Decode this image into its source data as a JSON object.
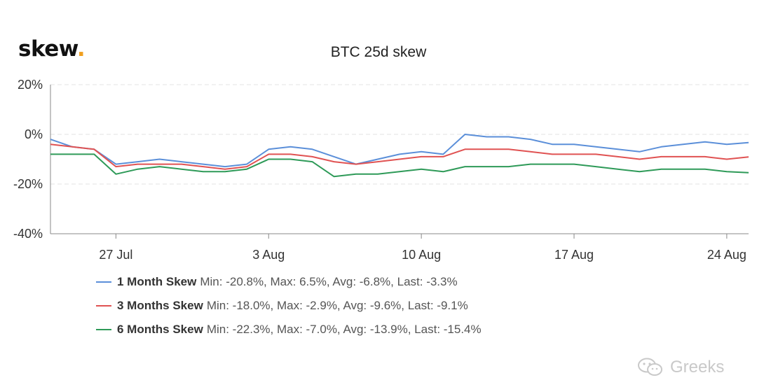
{
  "logo": {
    "text": "skew",
    "dot": "."
  },
  "watermark": {
    "text": "Greeks",
    "icon": "wechat-icon"
  },
  "colors": {
    "one_month": "#5b8fd9",
    "three_months": "#e05252",
    "six_months": "#2e9a58",
    "grid": "#e3e3e3",
    "axis": "#888888"
  },
  "chart_data": {
    "type": "line",
    "title": "BTC 25d skew",
    "xlabel": "",
    "ylabel": "",
    "x_ticks": [
      "27 Jul",
      "3 Aug",
      "10 Aug",
      "17 Aug",
      "24 Aug"
    ],
    "y_ticks": [
      "20%",
      "0%",
      "-20%",
      "-40%"
    ],
    "xlim": [
      "2020-07-24",
      "2020-08-25"
    ],
    "ylim": [
      -40,
      20
    ],
    "grid": true,
    "legend_position": "bottom-left",
    "series": [
      {
        "name": "1 Month Skew",
        "stats": "Min: -20.8%, Max: 6.5%, Avg: -6.8%, Last: -3.3%",
        "x": [
          "2020-07-24",
          "2020-07-25",
          "2020-07-26",
          "2020-07-27",
          "2020-07-28",
          "2020-07-29",
          "2020-07-30",
          "2020-07-31",
          "2020-08-01",
          "2020-08-02",
          "2020-08-03",
          "2020-08-04",
          "2020-08-05",
          "2020-08-06",
          "2020-08-07",
          "2020-08-08",
          "2020-08-09",
          "2020-08-10",
          "2020-08-11",
          "2020-08-12",
          "2020-08-13",
          "2020-08-14",
          "2020-08-15",
          "2020-08-16",
          "2020-08-17",
          "2020-08-18",
          "2020-08-19",
          "2020-08-20",
          "2020-08-21",
          "2020-08-22",
          "2020-08-23",
          "2020-08-24",
          "2020-08-25"
        ],
        "values": [
          -2,
          -5,
          -6,
          -12,
          -11,
          -10,
          -11,
          -12,
          -13,
          -12,
          -6,
          -5,
          -6,
          -9,
          -12,
          -10,
          -8,
          -7,
          -8,
          0,
          -1,
          -1,
          -2,
          -4,
          -4,
          -5,
          -6,
          -7,
          -5,
          -4,
          -3,
          -4,
          -3.3
        ]
      },
      {
        "name": "3 Months Skew",
        "stats": "Min: -18.0%, Max: -2.9%, Avg: -9.6%, Last: -9.1%",
        "x": [
          "2020-07-24",
          "2020-07-25",
          "2020-07-26",
          "2020-07-27",
          "2020-07-28",
          "2020-07-29",
          "2020-07-30",
          "2020-07-31",
          "2020-08-01",
          "2020-08-02",
          "2020-08-03",
          "2020-08-04",
          "2020-08-05",
          "2020-08-06",
          "2020-08-07",
          "2020-08-08",
          "2020-08-09",
          "2020-08-10",
          "2020-08-11",
          "2020-08-12",
          "2020-08-13",
          "2020-08-14",
          "2020-08-15",
          "2020-08-16",
          "2020-08-17",
          "2020-08-18",
          "2020-08-19",
          "2020-08-20",
          "2020-08-21",
          "2020-08-22",
          "2020-08-23",
          "2020-08-24",
          "2020-08-25"
        ],
        "values": [
          -4,
          -5,
          -6,
          -13,
          -12,
          -12,
          -12,
          -13,
          -14,
          -13,
          -8,
          -8,
          -9,
          -11,
          -12,
          -11,
          -10,
          -9,
          -9,
          -6,
          -6,
          -6,
          -7,
          -8,
          -8,
          -8,
          -9,
          -10,
          -9,
          -9,
          -9,
          -10,
          -9.1
        ]
      },
      {
        "name": "6 Months Skew",
        "stats": "Min: -22.3%, Max: -7.0%, Avg: -13.9%, Last: -15.4%",
        "x": [
          "2020-07-24",
          "2020-07-25",
          "2020-07-26",
          "2020-07-27",
          "2020-07-28",
          "2020-07-29",
          "2020-07-30",
          "2020-07-31",
          "2020-08-01",
          "2020-08-02",
          "2020-08-03",
          "2020-08-04",
          "2020-08-05",
          "2020-08-06",
          "2020-08-07",
          "2020-08-08",
          "2020-08-09",
          "2020-08-10",
          "2020-08-11",
          "2020-08-12",
          "2020-08-13",
          "2020-08-14",
          "2020-08-15",
          "2020-08-16",
          "2020-08-17",
          "2020-08-18",
          "2020-08-19",
          "2020-08-20",
          "2020-08-21",
          "2020-08-22",
          "2020-08-23",
          "2020-08-24",
          "2020-08-25"
        ],
        "values": [
          -8,
          -8,
          -8,
          -16,
          -14,
          -13,
          -14,
          -15,
          -15,
          -14,
          -10,
          -10,
          -11,
          -17,
          -16,
          -16,
          -15,
          -14,
          -15,
          -13,
          -13,
          -13,
          -12,
          -12,
          -12,
          -13,
          -14,
          -15,
          -14,
          -14,
          -14,
          -15,
          -15.4
        ]
      }
    ]
  }
}
